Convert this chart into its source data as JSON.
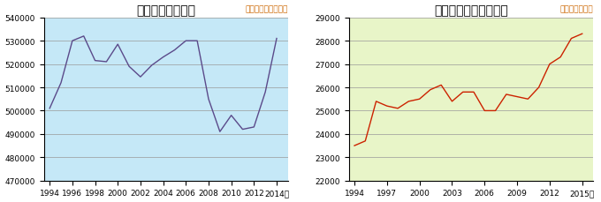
{
  "gdp_title": "国内総生産の推移",
  "gdp_unit": "（単位：１０億円）",
  "gdp_years": [
    1994,
    1995,
    1996,
    1997,
    1998,
    1999,
    2000,
    2001,
    2002,
    2003,
    2004,
    2005,
    2006,
    2007,
    2008,
    2009,
    2010,
    2011,
    2012,
    2013,
    2014
  ],
  "gdp_values": [
    501000,
    512000,
    530000,
    532000,
    521500,
    521000,
    528500,
    519000,
    514500,
    519500,
    523000,
    526000,
    530000,
    530000,
    505000,
    491000,
    498000,
    492000,
    493000,
    508000,
    531000
  ],
  "gdp_xlim": [
    1993.5,
    2015.0
  ],
  "gdp_ylim": [
    470000,
    540000
  ],
  "gdp_yticks": [
    470000,
    480000,
    490000,
    500000,
    510000,
    520000,
    530000,
    540000
  ],
  "gdp_xticks": [
    1994,
    1996,
    1998,
    2000,
    2002,
    2004,
    2006,
    2008,
    2010,
    2012,
    2014
  ],
  "gdp_bg_color": "#c5e8f7",
  "gdp_line_color": "#5b4a8a",
  "dental_title": "歯科診療医療費の推移",
  "dental_unit": "（単位：億円）",
  "dental_years": [
    1994,
    1995,
    1996,
    1997,
    1998,
    1999,
    2000,
    2001,
    2002,
    2003,
    2004,
    2005,
    2006,
    2007,
    2008,
    2009,
    2010,
    2011,
    2012,
    2013,
    2014,
    2015
  ],
  "dental_values": [
    23500,
    23700,
    25400,
    25200,
    25100,
    25400,
    25500,
    25900,
    26100,
    25400,
    25800,
    25800,
    25000,
    25000,
    25700,
    25600,
    25500,
    26000,
    27000,
    27300,
    28100,
    28300
  ],
  "dental_xlim": [
    1993.5,
    2016.0
  ],
  "dental_ylim": [
    22000,
    29000
  ],
  "dental_yticks": [
    22000,
    23000,
    24000,
    25000,
    26000,
    27000,
    28000,
    29000
  ],
  "dental_xticks": [
    1994,
    1997,
    2000,
    2003,
    2006,
    2009,
    2012,
    2015
  ],
  "dental_bg_color": "#e8f5c8",
  "dental_line_color": "#cc2200",
  "title_fontsize": 10,
  "unit_fontsize": 6.5,
  "tick_fontsize": 6.5,
  "grid_color": "#999999",
  "outer_bg": "#ffffff"
}
